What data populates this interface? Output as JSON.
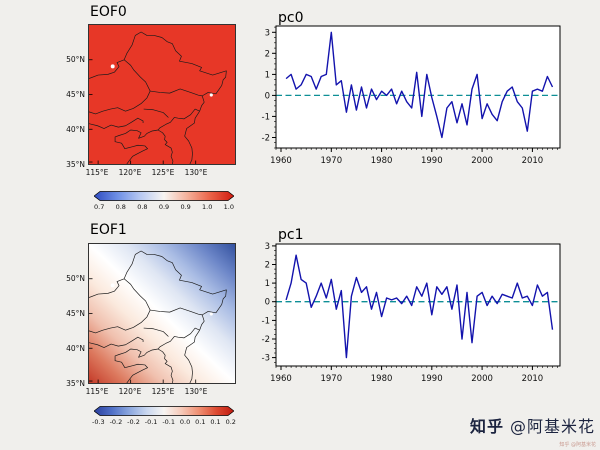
{
  "figure": {
    "bg": "#f0efec"
  },
  "watermark": {
    "brand": "知乎",
    "user": "@阿基米花",
    "tiny": "知乎 @阿基米花",
    "color": "#1c2440"
  },
  "chart_data": [
    {
      "type": "map",
      "title": "EOF0",
      "lon_range": [
        113.6,
        136.0
      ],
      "lat_range": [
        35,
        55
      ],
      "lat_tick_labels": [
        "50°N",
        "45°N",
        "40°N",
        "35°N"
      ],
      "lon_tick_labels": [
        "115°E",
        "120°E",
        "125°E",
        "130°E"
      ],
      "pattern": "uniform positive loading (~0.95-1.0) over Northeast China, shown solid red",
      "fill_color": "#e73727",
      "colorbar": {
        "min": 0.7,
        "max": 1.0,
        "labels": [
          "0.7",
          "0.8",
          "0.8",
          "0.9",
          "0.9",
          "1.0",
          "1.0"
        ],
        "colors": [
          "#2f4bbf",
          "#6d8fe6",
          "#b8c9f2",
          "#f7f5f2",
          "#f5b09a",
          "#ea6247",
          "#d11a0f"
        ]
      }
    },
    {
      "type": "line",
      "title": "pc0",
      "x": [
        1961,
        1962,
        1963,
        1964,
        1965,
        1966,
        1967,
        1968,
        1969,
        1970,
        1971,
        1972,
        1973,
        1974,
        1975,
        1976,
        1977,
        1978,
        1979,
        1980,
        1981,
        1982,
        1983,
        1984,
        1985,
        1986,
        1987,
        1988,
        1989,
        1990,
        1991,
        1992,
        1993,
        1994,
        1995,
        1996,
        1997,
        1998,
        1999,
        2000,
        2001,
        2002,
        2003,
        2004,
        2005,
        2006,
        2007,
        2008,
        2009,
        2010,
        2011,
        2012,
        2013,
        2014
      ],
      "values": [
        0.8,
        1.0,
        0.3,
        0.5,
        1.0,
        0.9,
        0.3,
        0.9,
        1.0,
        3.0,
        0.5,
        0.7,
        -0.8,
        0.5,
        -0.7,
        0.4,
        -0.6,
        0.3,
        -0.2,
        0.2,
        0.0,
        0.3,
        -0.4,
        0.2,
        -0.3,
        -0.6,
        1.1,
        -1.0,
        1.0,
        -0.1,
        -1.0,
        -2.0,
        -0.6,
        -0.3,
        -1.3,
        -0.4,
        -1.4,
        0.3,
        1.0,
        -1.1,
        -0.4,
        -0.9,
        -1.2,
        -0.3,
        0.2,
        0.4,
        -0.3,
        -0.6,
        -1.7,
        0.2,
        0.3,
        0.2,
        0.9,
        0.4
      ],
      "xlim": [
        1959,
        2015.5
      ],
      "ylim": [
        -2.5,
        3.3
      ],
      "xticks": [
        1960,
        1970,
        1980,
        1990,
        2000,
        2010
      ],
      "yticks": [
        3,
        2,
        1,
        0,
        -1,
        -2
      ],
      "zero_line": true,
      "line_color": "#1313ad",
      "zero_line_color": "#0e8f96",
      "grid": false,
      "legend": false
    },
    {
      "type": "map",
      "title": "EOF1",
      "lon_range": [
        113.6,
        136.0
      ],
      "lat_range": [
        35,
        55
      ],
      "lat_tick_labels": [
        "50°N",
        "45°N",
        "40°N",
        "35°N"
      ],
      "lon_tick_labels": [
        "115°E",
        "120°E",
        "125°E",
        "130°E"
      ],
      "pattern": "dipole: positive (red) southwest grading through white to negative (blue) northeast",
      "fill_gradient": [
        "#c43a28",
        "#dd7a5f",
        "#f0c0ae",
        "#fbeade",
        "#ffffff",
        "#dfe6f3",
        "#a9bce4",
        "#6c86c8",
        "#33519f"
      ],
      "colorbar": {
        "min": -0.3,
        "max": 0.2,
        "labels": [
          "-0.3",
          "-0.2",
          "-0.2",
          "-0.1",
          "-0.1",
          "0.0",
          "0.1",
          "0.1",
          "0.2"
        ],
        "colors": [
          "#2b3f9e",
          "#4f6fc6",
          "#8aa6de",
          "#c8d6ef",
          "#f7f5f2",
          "#f6c9b8",
          "#ef8f72",
          "#dd4a31",
          "#bf1a10"
        ]
      }
    },
    {
      "type": "line",
      "title": "pc1",
      "x": [
        1961,
        1962,
        1963,
        1964,
        1965,
        1966,
        1967,
        1968,
        1969,
        1970,
        1971,
        1972,
        1973,
        1974,
        1975,
        1976,
        1977,
        1978,
        1979,
        1980,
        1981,
        1982,
        1983,
        1984,
        1985,
        1986,
        1987,
        1988,
        1989,
        1990,
        1991,
        1992,
        1993,
        1994,
        1995,
        1996,
        1997,
        1998,
        1999,
        2000,
        2001,
        2002,
        2003,
        2004,
        2005,
        2006,
        2007,
        2008,
        2009,
        2010,
        2011,
        2012,
        2013,
        2014
      ],
      "values": [
        0.1,
        1.0,
        2.5,
        1.2,
        1.0,
        -0.3,
        0.3,
        1.0,
        0.2,
        1.2,
        -0.4,
        0.6,
        -3.0,
        0.3,
        1.3,
        0.5,
        0.8,
        -0.4,
        0.5,
        -0.8,
        0.2,
        0.1,
        0.2,
        -0.1,
        0.3,
        -0.2,
        0.8,
        0.3,
        1.0,
        -0.7,
        0.8,
        0.4,
        0.8,
        -0.4,
        0.9,
        -2.0,
        0.5,
        -2.2,
        0.3,
        0.5,
        -0.2,
        0.3,
        -0.1,
        0.4,
        0.3,
        0.2,
        1.0,
        0.2,
        0.3,
        -0.2,
        0.9,
        0.3,
        0.5,
        -1.5
      ],
      "xlim": [
        1959,
        2015.5
      ],
      "ylim": [
        -3.45,
        3.1
      ],
      "xticks": [
        1960,
        1970,
        1980,
        1990,
        2000,
        2010
      ],
      "yticks": [
        3,
        2,
        1,
        0,
        -1,
        -2,
        -3
      ],
      "zero_line": true,
      "line_color": "#1313ad",
      "zero_line_color": "#0e8f96",
      "grid": false,
      "legend": false
    }
  ]
}
